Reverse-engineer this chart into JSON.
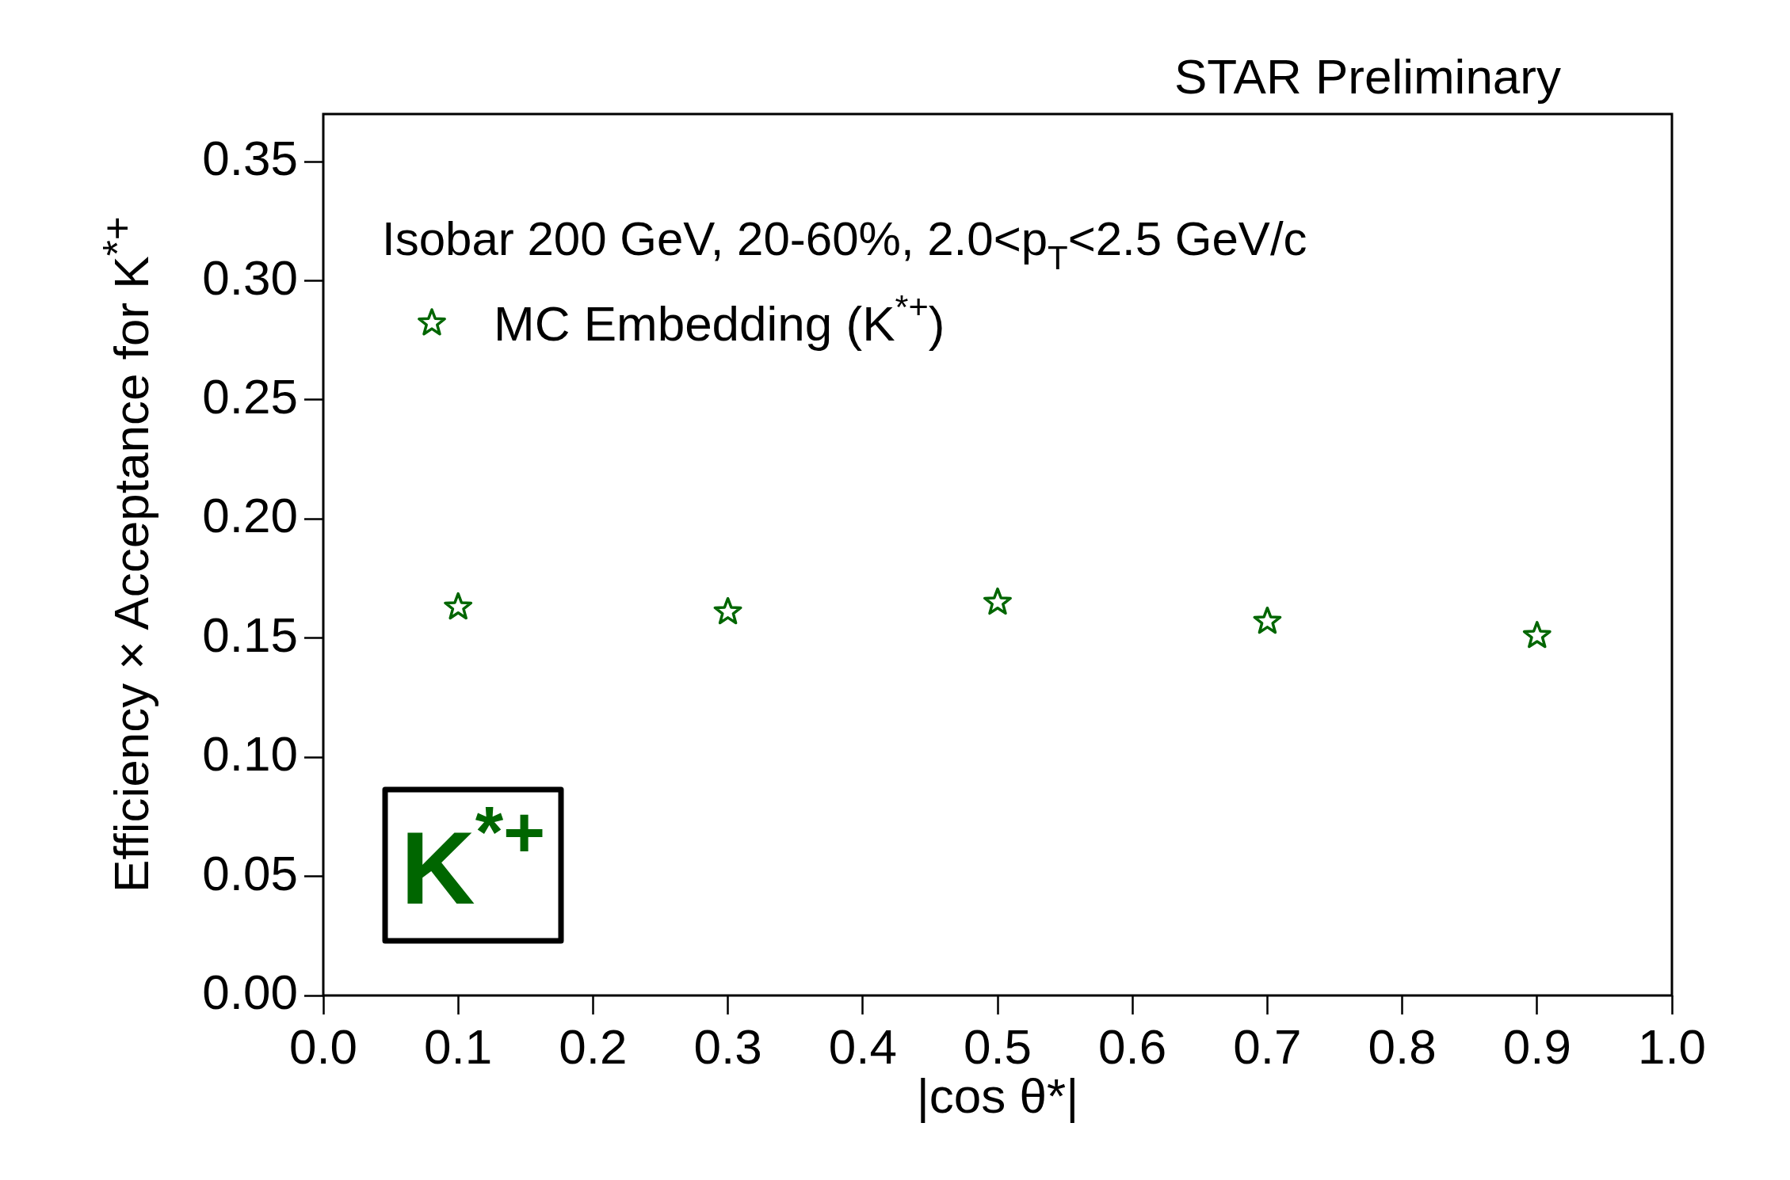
{
  "chart_data": {
    "type": "scatter",
    "title": "STAR Preliminary",
    "xlabel": "|cos θ*|",
    "ylabel": "Efficiency × Acceptance for K$^{*+}$",
    "annotations": [
      "Isobar 200 GeV, 20-60%, 2.0<p$_{T}$<2.5 GeV/c",
      "K$^{*+}$"
    ],
    "x": [
      0.1,
      0.3,
      0.5,
      0.7,
      0.9
    ],
    "series": [
      {
        "name": "MC Embedding (K$^{*+}$)",
        "color": "#006600",
        "values": [
          0.163,
          0.161,
          0.165,
          0.157,
          0.151
        ]
      }
    ],
    "xlim": [
      0,
      1
    ],
    "ylim": [
      0,
      0.37
    ],
    "xticks": [
      {
        "value": 0,
        "label": "0.0"
      },
      {
        "value": 0.1,
        "label": "0.1"
      },
      {
        "value": 0.2,
        "label": "0.2"
      },
      {
        "value": 0.3,
        "label": "0.3"
      },
      {
        "value": 0.4,
        "label": "0.4"
      },
      {
        "value": 0.5,
        "label": "0.5"
      },
      {
        "value": 0.6,
        "label": "0.6"
      },
      {
        "value": 0.7,
        "label": "0.7"
      },
      {
        "value": 0.8,
        "label": "0.8"
      },
      {
        "value": 0.9,
        "label": "0.9"
      },
      {
        "value": 1,
        "label": "1.0"
      }
    ],
    "yticks": [
      {
        "value": 0,
        "label": "0.00"
      },
      {
        "value": 0.05,
        "label": "0.05"
      },
      {
        "value": 0.1,
        "label": "0.10"
      },
      {
        "value": 0.15,
        "label": "0.15"
      },
      {
        "value": 0.2,
        "label": "0.20"
      },
      {
        "value": 0.25,
        "label": "0.25"
      },
      {
        "value": 0.3,
        "label": "0.30"
      },
      {
        "value": 0.35,
        "label": "0.35"
      }
    ],
    "legend": "top left",
    "marker": "star",
    "grid": false
  }
}
